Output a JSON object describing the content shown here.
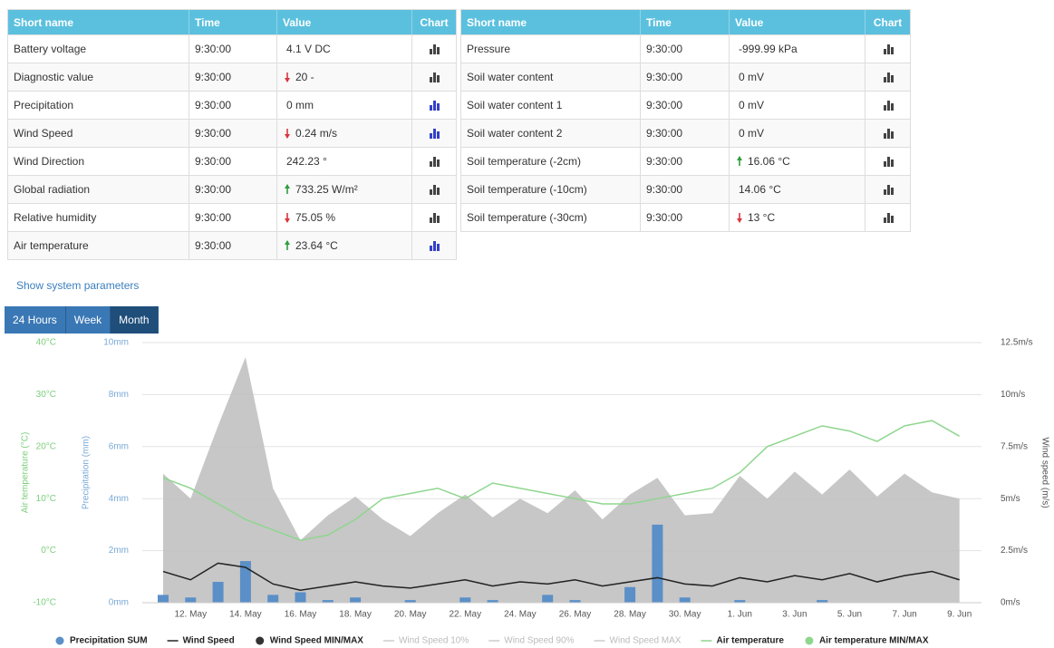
{
  "tables": [
    {
      "headers": [
        "Short name",
        "Time",
        "Value",
        "Chart"
      ],
      "rows": [
        {
          "name": "Battery voltage",
          "time": "9:30:00",
          "value": "4.1 V DC",
          "trend": null,
          "chart_active": false
        },
        {
          "name": "Diagnostic value",
          "time": "9:30:00",
          "value": "20 -",
          "trend": "down",
          "chart_active": false
        },
        {
          "name": "Precipitation",
          "time": "9:30:00",
          "value": "0 mm",
          "trend": null,
          "chart_active": true
        },
        {
          "name": "Wind Speed",
          "time": "9:30:00",
          "value": "0.24 m/s",
          "trend": "down",
          "chart_active": true
        },
        {
          "name": "Wind Direction",
          "time": "9:30:00",
          "value": "242.23 °",
          "trend": null,
          "chart_active": false
        },
        {
          "name": "Global radiation",
          "time": "9:30:00",
          "value": "733.25 W/m²",
          "trend": "up",
          "chart_active": false
        },
        {
          "name": "Relative humidity",
          "time": "9:30:00",
          "value": "75.05 %",
          "trend": "down",
          "chart_active": false
        },
        {
          "name": "Air temperature",
          "time": "9:30:00",
          "value": "23.64 °C",
          "trend": "up",
          "chart_active": true
        }
      ]
    },
    {
      "headers": [
        "Short name",
        "Time",
        "Value",
        "Chart"
      ],
      "rows": [
        {
          "name": "Pressure",
          "time": "9:30:00",
          "value": "-999.99 kPa",
          "trend": null,
          "chart_active": false
        },
        {
          "name": "Soil water content",
          "time": "9:30:00",
          "value": "0 mV",
          "trend": null,
          "chart_active": false
        },
        {
          "name": "Soil water content 1",
          "time": "9:30:00",
          "value": "0 mV",
          "trend": null,
          "chart_active": false
        },
        {
          "name": "Soil water content 2",
          "time": "9:30:00",
          "value": "0 mV",
          "trend": null,
          "chart_active": false
        },
        {
          "name": "Soil temperature (-2cm)",
          "time": "9:30:00",
          "value": "16.06 °C",
          "trend": "up",
          "chart_active": false
        },
        {
          "name": "Soil temperature (-10cm)",
          "time": "9:30:00",
          "value": "14.06 °C",
          "trend": null,
          "chart_active": false
        },
        {
          "name": "Soil temperature (-30cm)",
          "time": "9:30:00",
          "value": "13 °C",
          "trend": "down",
          "chart_active": false
        }
      ]
    }
  ],
  "link": "Show system parameters",
  "buttons": [
    {
      "label": "24 Hours",
      "active": false
    },
    {
      "label": "Week",
      "active": false
    },
    {
      "label": "Month",
      "active": true
    }
  ],
  "chart_data": {
    "type": "line",
    "ylabel": "Air temperature (°C)",
    "y2label": "Precipitation (mm)",
    "y3label": "Wind speed (m/s)",
    "categories": [
      null,
      "12. May",
      null,
      "14. May",
      null,
      "16. May",
      null,
      "18. May",
      null,
      "20. May",
      null,
      "22. May",
      null,
      "24. May",
      null,
      "26. May",
      null,
      "28. May",
      null,
      "30. May",
      null,
      "1. Jun",
      null,
      "3. Jun",
      null,
      "5. Jun",
      null,
      "7. Jun",
      null,
      "9. Jun"
    ],
    "ylim": [
      -10,
      40
    ],
    "yticks": [
      {
        "value": 40,
        "label": "40°C"
      },
      {
        "value": 30,
        "label": "30°C"
      },
      {
        "value": 20,
        "label": "20°C"
      },
      {
        "value": 10,
        "label": "10°C"
      },
      {
        "value": 0,
        "label": "0°C"
      },
      {
        "value": -10,
        "label": "-10°C"
      }
    ],
    "y2lim": [
      0,
      10
    ],
    "y2ticks": [
      {
        "value": 10,
        "label": "10mm"
      },
      {
        "value": 8,
        "label": "8mm"
      },
      {
        "value": 6,
        "label": "6mm"
      },
      {
        "value": 4,
        "label": "4mm"
      },
      {
        "value": 2,
        "label": "2mm"
      },
      {
        "value": 0,
        "label": "0mm"
      }
    ],
    "y3lim": [
      0,
      12.5
    ],
    "y3ticks": [
      {
        "value": 12.5,
        "label": "12.5m/s"
      },
      {
        "value": 10,
        "label": "10m/s"
      },
      {
        "value": 7.5,
        "label": "7.5m/s"
      },
      {
        "value": 5,
        "label": "5m/s"
      },
      {
        "value": 2.5,
        "label": "2.5m/s"
      },
      {
        "value": 0,
        "label": "0m/s"
      }
    ],
    "grid": true,
    "series": [
      {
        "name": "Wind Speed MIN/MAX",
        "kind": "area",
        "axis": "y3",
        "color": "#bdbdbd",
        "values": [
          6.2,
          5.0,
          8.5,
          11.8,
          5.5,
          3.0,
          4.2,
          5.1,
          4.0,
          3.2,
          4.3,
          5.2,
          4.1,
          5.0,
          4.3,
          5.4,
          4.0,
          5.2,
          6.0,
          4.2,
          4.3,
          6.1,
          5.0,
          6.3,
          5.2,
          6.4,
          5.1,
          6.2,
          5.3,
          5.0
        ]
      },
      {
        "name": "Precipitation SUM",
        "kind": "column",
        "axis": "y2",
        "color": "#5b8fc7",
        "values": [
          0.3,
          0.2,
          0.8,
          1.6,
          0.3,
          0.4,
          0.1,
          0.2,
          0,
          0.1,
          0,
          0.2,
          0.1,
          0,
          0.3,
          0.1,
          0,
          0.6,
          3.0,
          0.2,
          0,
          0.1,
          0,
          0,
          0.1,
          0,
          0,
          0,
          0,
          0
        ]
      },
      {
        "name": "Wind Speed",
        "kind": "line",
        "axis": "y3",
        "color": "#222222",
        "values": [
          1.5,
          1.1,
          1.9,
          1.7,
          0.9,
          0.6,
          0.8,
          1.0,
          0.8,
          0.7,
          0.9,
          1.1,
          0.8,
          1.0,
          0.9,
          1.1,
          0.8,
          1.0,
          1.2,
          0.9,
          0.8,
          1.2,
          1.0,
          1.3,
          1.1,
          1.4,
          1.0,
          1.3,
          1.5,
          1.1
        ]
      },
      {
        "name": "Air temperature",
        "kind": "line",
        "axis": "y",
        "color": "#8fd68f",
        "values": [
          14,
          12,
          9,
          6,
          4,
          2,
          3,
          6,
          10,
          11,
          12,
          10,
          13,
          12,
          11,
          10,
          9,
          9,
          10,
          11,
          12,
          15,
          20,
          22,
          24,
          23,
          21,
          24,
          25,
          22
        ]
      }
    ],
    "legend_order": [
      "Precipitation SUM",
      "Wind Speed",
      "Wind Speed MIN/MAX",
      "Wind Speed 10%",
      "Wind Speed 90%",
      "Wind Speed MAX",
      "Air temperature",
      "Air temperature MIN/MAX"
    ],
    "legend_only": [
      {
        "name": "Wind Speed 10%",
        "color": "#cccccc",
        "hidden": true
      },
      {
        "name": "Wind Speed 90%",
        "color": "#cccccc",
        "hidden": true
      },
      {
        "name": "Wind Speed MAX",
        "color": "#cccccc",
        "hidden": true
      },
      {
        "name": "Air temperature MIN/MAX",
        "color": "#8fd68f",
        "hidden": false
      }
    ]
  }
}
